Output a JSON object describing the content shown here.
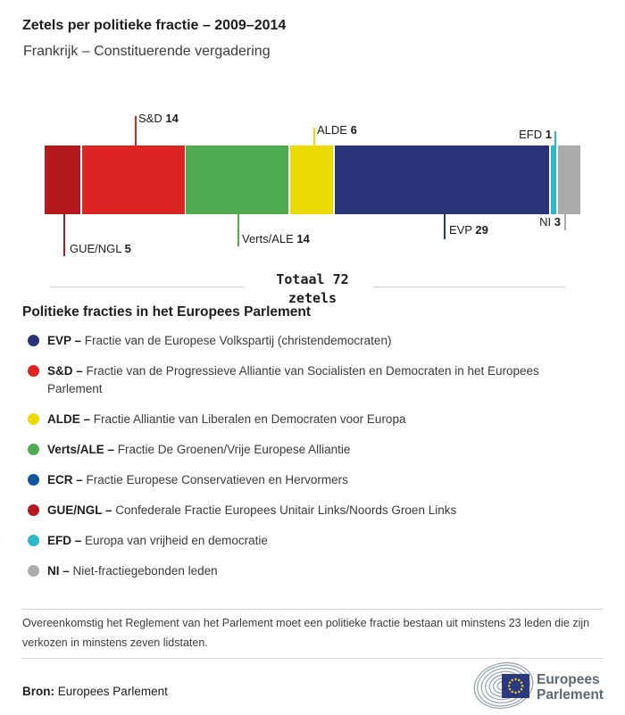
{
  "header": {
    "title": "Zetels per politieke fractie – 2009–2014",
    "subtitle": "Frankrijk – Constituerende vergadering"
  },
  "chart_data": {
    "type": "bar",
    "variant": "horizontal-stacked-single-bar",
    "title": "Zetels per politieke fractie – 2009–2014",
    "subtitle": "Frankrijk – Constituerende vergadering",
    "total": 72,
    "unit": "zetels",
    "segments": [
      {
        "name": "GUE/NGL",
        "value": 5,
        "color": "#b3191d",
        "label_position": "below"
      },
      {
        "name": "S&D",
        "value": 14,
        "color": "#de2423",
        "label_position": "above"
      },
      {
        "name": "Verts/ALE",
        "value": 14,
        "color": "#4fab51",
        "label_position": "below"
      },
      {
        "name": "ALDE",
        "value": 6,
        "color": "#ebdb02",
        "label_position": "above"
      },
      {
        "name": "EVP",
        "value": 29,
        "color": "#283477",
        "label_position": "below"
      },
      {
        "name": "EFD",
        "value": 1,
        "color": "#29b9cb",
        "label_position": "above"
      },
      {
        "name": "NI",
        "value": 3,
        "color": "#ababab",
        "label_position": "below"
      }
    ]
  },
  "summary": {
    "total_line": "Totaal 72",
    "unit_line": "zetels"
  },
  "legend": {
    "heading": "Politieke fracties in het Europees Parlement",
    "separator": "–",
    "items": [
      {
        "abbr": "EVP",
        "color": "#283477",
        "description": "Fractie van de Europese Volkspartij (christendemocraten)"
      },
      {
        "abbr": "S&D",
        "color": "#de2423",
        "description": "Fractie van de Progressieve Alliantie van Socialisten en Democraten in het Europees Parlement"
      },
      {
        "abbr": "ALDE",
        "color": "#ebdb02",
        "description": "Fractie Alliantie van Liberalen en Democraten voor Europa"
      },
      {
        "abbr": "Verts/ALE",
        "color": "#4fab51",
        "description": "Fractie De Groenen/Vrije Europese Alliantie"
      },
      {
        "abbr": "ECR",
        "color": "#0e56a0",
        "description": "Fractie Europese Conservatieven en Hervormers"
      },
      {
        "abbr": "GUE/NGL",
        "color": "#b3191d",
        "description": "Confederale Fractie Europees Unitair Links/Noords Groen Links"
      },
      {
        "abbr": "EFD",
        "color": "#29b9cb",
        "description": "Europa van vrijheid en democratie"
      },
      {
        "abbr": "NI",
        "color": "#ababab",
        "description": "Niet-fractiegebonden leden"
      }
    ]
  },
  "footer": {
    "note": "Overeenkomstig het Reglement van het Parlement moet een politieke fractie bestaan uit minstens 23 leden die zijn verkozen in minstens zeven lidstaten.",
    "source_label": "Bron:",
    "source": "Europees Parlement",
    "logo_text_line1": "Europees",
    "logo_text_line2": "Parlement"
  },
  "colors": {
    "text_dark": "#1d1d1b",
    "text_gray": "#3c3c3b",
    "divider": "#d8d8d8",
    "eu_flag_blue": "#2b3a80",
    "eu_star_yellow": "#f7d117",
    "logo_gray": "#5c6873",
    "arc_gray": "#95a2ab"
  }
}
